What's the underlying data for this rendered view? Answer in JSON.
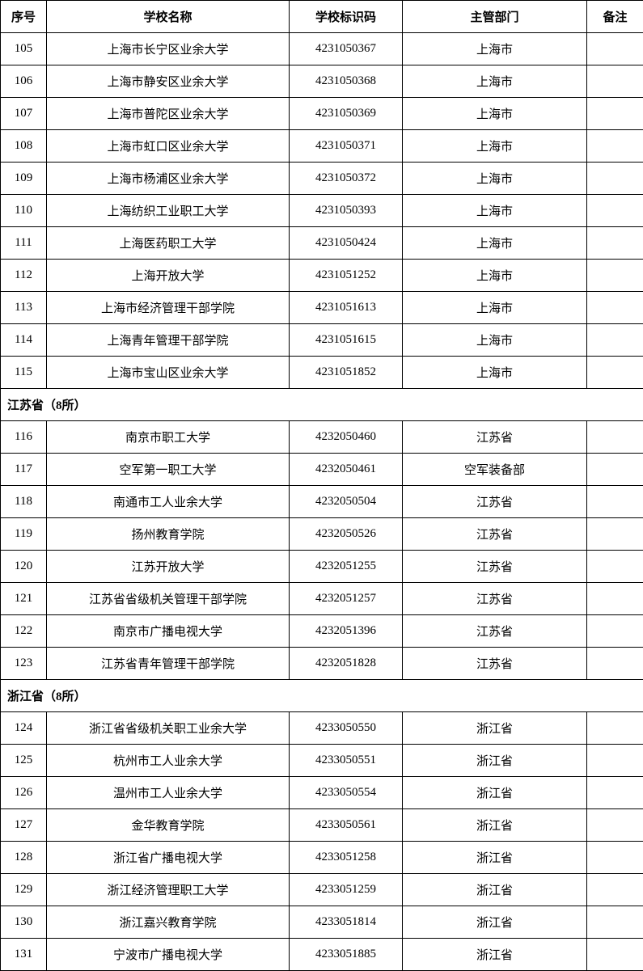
{
  "headers": {
    "seq": "序号",
    "name": "学校名称",
    "code": "学校标识码",
    "dept": "主管部门",
    "note": "备注"
  },
  "sections": [
    {
      "title": "",
      "rows": [
        {
          "seq": "105",
          "name": "上海市长宁区业余大学",
          "code": "4231050367",
          "dept": "上海市",
          "note": ""
        },
        {
          "seq": "106",
          "name": "上海市静安区业余大学",
          "code": "4231050368",
          "dept": "上海市",
          "note": ""
        },
        {
          "seq": "107",
          "name": "上海市普陀区业余大学",
          "code": "4231050369",
          "dept": "上海市",
          "note": ""
        },
        {
          "seq": "108",
          "name": "上海市虹口区业余大学",
          "code": "4231050371",
          "dept": "上海市",
          "note": ""
        },
        {
          "seq": "109",
          "name": "上海市杨浦区业余大学",
          "code": "4231050372",
          "dept": "上海市",
          "note": ""
        },
        {
          "seq": "110",
          "name": "上海纺织工业职工大学",
          "code": "4231050393",
          "dept": "上海市",
          "note": ""
        },
        {
          "seq": "111",
          "name": "上海医药职工大学",
          "code": "4231050424",
          "dept": "上海市",
          "note": ""
        },
        {
          "seq": "112",
          "name": "上海开放大学",
          "code": "4231051252",
          "dept": "上海市",
          "note": ""
        },
        {
          "seq": "113",
          "name": "上海市经济管理干部学院",
          "code": "4231051613",
          "dept": "上海市",
          "note": ""
        },
        {
          "seq": "114",
          "name": "上海青年管理干部学院",
          "code": "4231051615",
          "dept": "上海市",
          "note": ""
        },
        {
          "seq": "115",
          "name": "上海市宝山区业余大学",
          "code": "4231051852",
          "dept": "上海市",
          "note": ""
        }
      ]
    },
    {
      "title": "江苏省（8所）",
      "rows": [
        {
          "seq": "116",
          "name": "南京市职工大学",
          "code": "4232050460",
          "dept": "江苏省",
          "note": ""
        },
        {
          "seq": "117",
          "name": "空军第一职工大学",
          "code": "4232050461",
          "dept": "空军装备部",
          "note": ""
        },
        {
          "seq": "118",
          "name": "南通市工人业余大学",
          "code": "4232050504",
          "dept": "江苏省",
          "note": ""
        },
        {
          "seq": "119",
          "name": "扬州教育学院",
          "code": "4232050526",
          "dept": "江苏省",
          "note": ""
        },
        {
          "seq": "120",
          "name": "江苏开放大学",
          "code": "4232051255",
          "dept": "江苏省",
          "note": ""
        },
        {
          "seq": "121",
          "name": "江苏省省级机关管理干部学院",
          "code": "4232051257",
          "dept": "江苏省",
          "note": ""
        },
        {
          "seq": "122",
          "name": "南京市广播电视大学",
          "code": "4232051396",
          "dept": "江苏省",
          "note": ""
        },
        {
          "seq": "123",
          "name": "江苏省青年管理干部学院",
          "code": "4232051828",
          "dept": "江苏省",
          "note": ""
        }
      ]
    },
    {
      "title": "浙江省（8所）",
      "rows": [
        {
          "seq": "124",
          "name": "浙江省省级机关职工业余大学",
          "code": "4233050550",
          "dept": "浙江省",
          "note": ""
        },
        {
          "seq": "125",
          "name": "杭州市工人业余大学",
          "code": "4233050551",
          "dept": "浙江省",
          "note": ""
        },
        {
          "seq": "126",
          "name": "温州市工人业余大学",
          "code": "4233050554",
          "dept": "浙江省",
          "note": ""
        },
        {
          "seq": "127",
          "name": "金华教育学院",
          "code": "4233050561",
          "dept": "浙江省",
          "note": ""
        },
        {
          "seq": "128",
          "name": "浙江省广播电视大学",
          "code": "4233051258",
          "dept": "浙江省",
          "note": ""
        },
        {
          "seq": "129",
          "name": "浙江经济管理职工大学",
          "code": "4233051259",
          "dept": "浙江省",
          "note": ""
        },
        {
          "seq": "130",
          "name": "浙江嘉兴教育学院",
          "code": "4233051814",
          "dept": "浙江省",
          "note": ""
        },
        {
          "seq": "131",
          "name": "宁波市广播电视大学",
          "code": "4233051885",
          "dept": "浙江省",
          "note": ""
        }
      ]
    }
  ],
  "styling": {
    "border_color": "#000000",
    "background_color": "#ffffff",
    "font_family": "SimSun",
    "font_size": 15,
    "header_font_weight": "bold",
    "cell_padding": "9px 4px",
    "column_widths": {
      "seq": 57,
      "name": 300,
      "code": 140,
      "dept": 228,
      "note": 70
    }
  }
}
